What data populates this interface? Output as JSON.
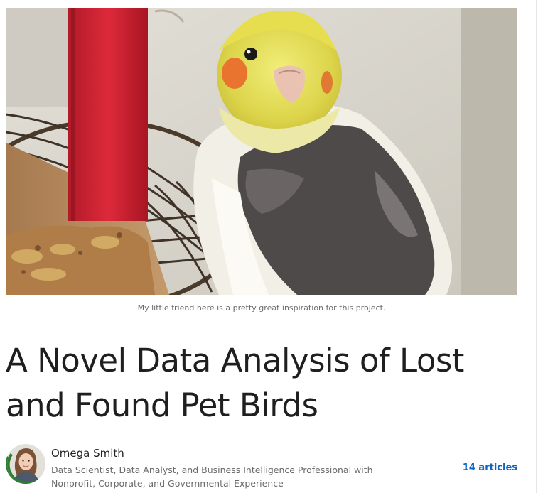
{
  "article": {
    "image_caption": "My little friend here is a pretty great inspiration for this project.",
    "title": "A Novel Data Analysis of Lost and Found Pet Birds"
  },
  "author": {
    "name": "Omega Smith",
    "headline": "Data Scientist, Data Analyst, and Business Intelligence Professional with Nonprofit, Corporate, and Governmental Experience",
    "articles_link": "14 articles",
    "avatar_badge": "#OPENTOWORK"
  },
  "colors": {
    "link": "#0a66c2",
    "open_to_work_badge": "#2f7d32",
    "title_text": "#1f1f1f"
  }
}
